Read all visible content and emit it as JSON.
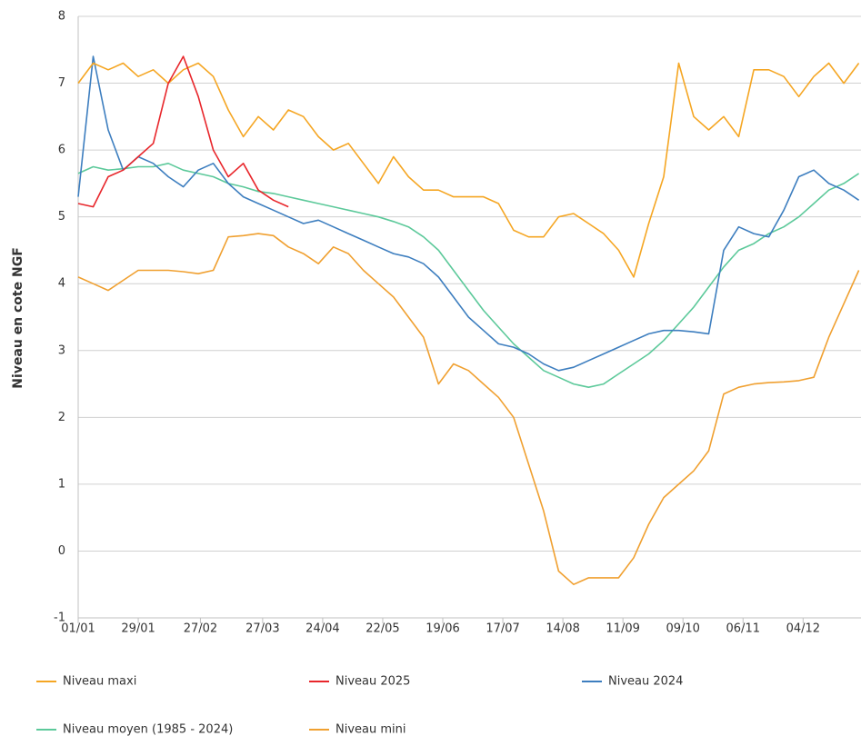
{
  "chart_data": {
    "type": "line",
    "y_label": "Niveau en cote NGF",
    "grid": true,
    "legend": "bottom",
    "xlim": [
      0,
      365
    ],
    "xticks": [
      {
        "value": 0,
        "label": "01/01"
      },
      {
        "value": 28,
        "label": "29/01"
      },
      {
        "value": 57,
        "label": "27/02"
      },
      {
        "value": 86,
        "label": "27/03"
      },
      {
        "value": 114,
        "label": "24/04"
      },
      {
        "value": 142,
        "label": "22/05"
      },
      {
        "value": 170,
        "label": "19/06"
      },
      {
        "value": 198,
        "label": "17/07"
      },
      {
        "value": 226,
        "label": "14/08"
      },
      {
        "value": 254,
        "label": "11/09"
      },
      {
        "value": 282,
        "label": "09/10"
      },
      {
        "value": 310,
        "label": "06/11"
      },
      {
        "value": 338,
        "label": "04/12"
      }
    ],
    "ylim": [
      -1,
      8
    ],
    "yticks": [
      -1,
      0,
      1,
      2,
      3,
      4,
      5,
      6,
      7,
      8
    ],
    "x": [
      0,
      7,
      14,
      21,
      28,
      35,
      42,
      49,
      56,
      63,
      70,
      77,
      84,
      91,
      98,
      105,
      112,
      119,
      126,
      133,
      140,
      147,
      154,
      161,
      168,
      175,
      182,
      189,
      196,
      203,
      210,
      217,
      224,
      231,
      238,
      245,
      252,
      259,
      266,
      273,
      280,
      287,
      294,
      301,
      308,
      315,
      322,
      329,
      336,
      343,
      350,
      357,
      364
    ],
    "series": [
      {
        "name": "Niveau maxi",
        "color": "#f5a623",
        "values": [
          7.0,
          7.3,
          7.2,
          7.3,
          7.1,
          7.2,
          7.0,
          7.2,
          7.3,
          7.1,
          6.6,
          6.2,
          6.5,
          6.3,
          6.6,
          6.5,
          6.2,
          6.0,
          6.1,
          5.8,
          5.5,
          5.9,
          5.6,
          5.4,
          5.4,
          5.3,
          5.3,
          5.3,
          5.2,
          4.8,
          4.7,
          4.7,
          5.0,
          5.05,
          4.9,
          4.75,
          4.5,
          4.1,
          4.9,
          5.6,
          7.3,
          6.5,
          6.3,
          6.5,
          6.2,
          7.2,
          7.2,
          7.1,
          6.8,
          7.1,
          7.3,
          7.0,
          7.3
        ]
      },
      {
        "name": "Niveau 2025",
        "color": "#e8262b",
        "values": [
          5.2,
          5.15,
          5.6,
          5.7,
          5.9,
          6.1,
          7.0,
          7.4,
          6.8,
          6.0,
          5.6,
          5.8,
          5.4,
          5.25,
          5.15,
          null,
          null,
          null,
          null,
          null,
          null,
          null,
          null,
          null,
          null,
          null,
          null,
          null,
          null,
          null,
          null,
          null,
          null,
          null,
          null,
          null,
          null,
          null,
          null,
          null,
          null,
          null,
          null,
          null,
          null,
          null,
          null,
          null,
          null,
          null,
          null,
          null,
          null
        ]
      },
      {
        "name": "Niveau 2024",
        "color": "#3d7ebf",
        "values": [
          5.3,
          7.4,
          6.3,
          5.7,
          5.9,
          5.8,
          5.6,
          5.45,
          5.7,
          5.8,
          5.5,
          5.3,
          5.2,
          5.1,
          5.0,
          4.9,
          4.95,
          4.85,
          4.75,
          4.65,
          4.55,
          4.45,
          4.4,
          4.3,
          4.1,
          3.8,
          3.5,
          3.3,
          3.1,
          3.05,
          2.95,
          2.8,
          2.7,
          2.75,
          2.85,
          2.95,
          3.05,
          3.15,
          3.25,
          3.3,
          3.3,
          3.28,
          3.25,
          4.5,
          4.85,
          4.75,
          4.7,
          5.1,
          5.6,
          5.7,
          5.5,
          5.4,
          5.25
        ]
      },
      {
        "name": "Niveau moyen (1985 - 2024)",
        "color": "#5cc99a",
        "values": [
          5.65,
          5.75,
          5.7,
          5.72,
          5.75,
          5.75,
          5.8,
          5.7,
          5.65,
          5.6,
          5.5,
          5.45,
          5.38,
          5.35,
          5.3,
          5.25,
          5.2,
          5.15,
          5.1,
          5.05,
          5.0,
          4.93,
          4.85,
          4.7,
          4.5,
          4.2,
          3.9,
          3.6,
          3.35,
          3.1,
          2.9,
          2.7,
          2.6,
          2.5,
          2.45,
          2.5,
          2.65,
          2.8,
          2.95,
          3.15,
          3.4,
          3.65,
          3.95,
          4.25,
          4.5,
          4.6,
          4.75,
          4.85,
          5.0,
          5.2,
          5.4,
          5.5,
          5.65
        ]
      },
      {
        "name": "Niveau mini",
        "color": "#f0a030",
        "values": [
          4.1,
          4.0,
          3.9,
          4.05,
          4.2,
          4.2,
          4.2,
          4.18,
          4.15,
          4.2,
          4.7,
          4.72,
          4.75,
          4.72,
          4.55,
          4.45,
          4.3,
          4.55,
          4.45,
          4.2,
          4.0,
          3.8,
          3.5,
          3.2,
          2.5,
          2.8,
          2.7,
          2.5,
          2.3,
          2.0,
          1.3,
          0.6,
          -0.3,
          -0.5,
          -0.4,
          -0.4,
          -0.4,
          -0.1,
          0.4,
          0.8,
          1.0,
          1.2,
          1.5,
          2.35,
          2.45,
          2.5,
          2.52,
          2.53,
          2.55,
          2.6,
          3.2,
          3.7,
          4.2
        ]
      }
    ]
  }
}
